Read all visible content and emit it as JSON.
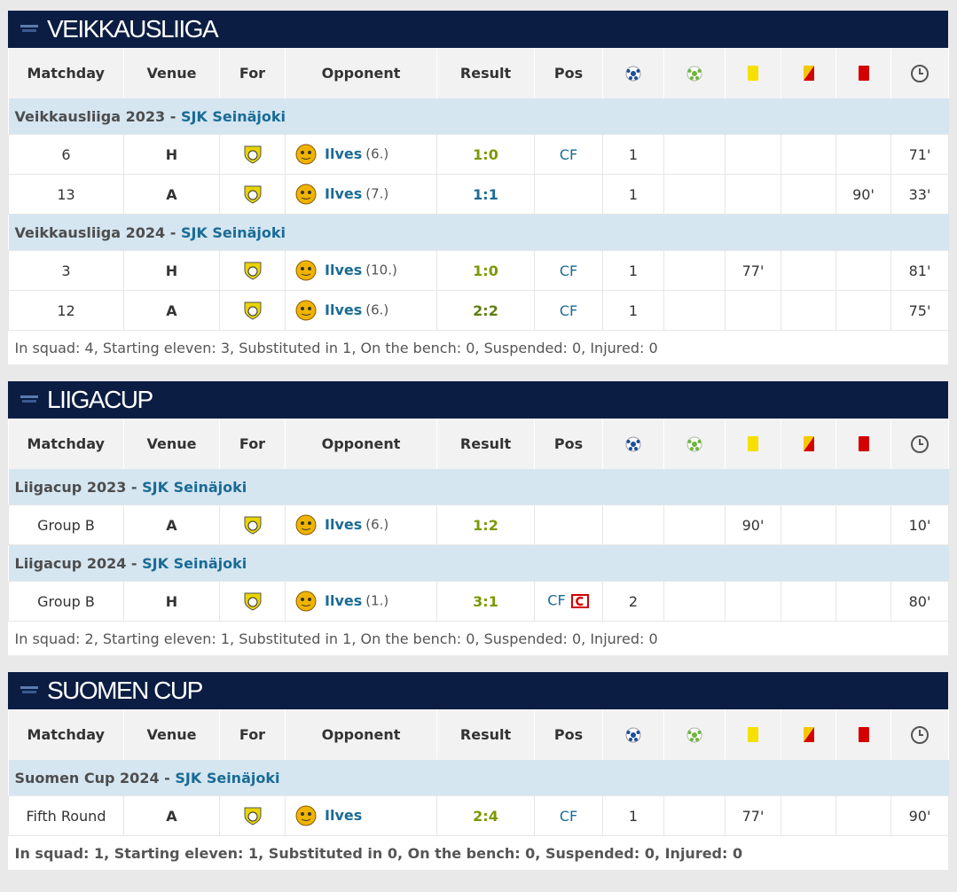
{
  "sections": [
    {
      "title": "VEIKKAUSLIIGA",
      "headers": [
        "Matchday",
        "Venue",
        "For",
        "Opponent",
        "Result",
        "Pos"
      ],
      "groups": [
        {
          "season": "Veikkausliiga 2023 -",
          "club": "SJK Seinäjoki",
          "rows": [
            {
              "matchday": "6",
              "venue": "H",
              "opponent": "Ilves",
              "rank": "(6.)",
              "result": "1:0",
              "result_color": "#7a9a01",
              "pos": "CF",
              "goals": "1",
              "minutes": "71'"
            },
            {
              "matchday": "13",
              "venue": "A",
              "opponent": "Ilves",
              "rank": "(7.)",
              "result": "1:1",
              "result_color": "#1a6b96",
              "goals": "1",
              "red": "90'",
              "minutes": "33'"
            }
          ]
        },
        {
          "season": "Veikkausliiga 2024 -",
          "club": "SJK Seinäjoki",
          "rows": [
            {
              "matchday": "3",
              "venue": "H",
              "opponent": "Ilves",
              "rank": "(10.)",
              "result": "1:0",
              "result_color": "#7a9a01",
              "pos": "CF",
              "goals": "1",
              "yellow": "77'",
              "minutes": "81'"
            },
            {
              "matchday": "12",
              "venue": "A",
              "opponent": "Ilves",
              "rank": "(6.)",
              "result": "2:2",
              "result_color": "#5f7f12",
              "pos": "CF",
              "goals": "1",
              "minutes": "75'"
            }
          ]
        }
      ],
      "summary": "In squad: 4, Starting eleven: 3, Substituted in 1, On the bench: 0, Suspended: 0, Injured: 0"
    },
    {
      "title": "LIIGACUP",
      "headers": [
        "Matchday",
        "Venue",
        "For",
        "Opponent",
        "Result",
        "Pos"
      ],
      "groups": [
        {
          "season": "Liigacup 2023 -",
          "club": "SJK Seinäjoki",
          "rows": [
            {
              "matchday": "Group B",
              "venue": "A",
              "opponent": "Ilves",
              "rank": "(6.)",
              "result": "1:2",
              "result_color": "#7a9a01",
              "yellow": "90'",
              "minutes": "10'"
            }
          ]
        },
        {
          "season": "Liigacup 2024 -",
          "club": "SJK Seinäjoki",
          "rows": [
            {
              "matchday": "Group B",
              "venue": "H",
              "opponent": "Ilves",
              "rank": "(1.)",
              "result": "3:1",
              "result_color": "#7a9a01",
              "pos": "CF",
              "captain": true,
              "goals": "2",
              "minutes": "80'"
            }
          ]
        }
      ],
      "summary": "In squad: 2, Starting eleven: 1, Substituted in 1, On the bench: 0, Suspended: 0, Injured: 0"
    },
    {
      "title": "SUOMEN CUP",
      "headers": [
        "Matchday",
        "Venue",
        "For",
        "Opponent",
        "Result",
        "Pos"
      ],
      "groups": [
        {
          "season": "Suomen Cup 2024 -",
          "club": "SJK Seinäjoki",
          "rows": [
            {
              "matchday": "Fifth Round",
              "venue": "A",
              "opponent": "Ilves",
              "result": "2:4",
              "result_color": "#7a9a01",
              "pos": "CF",
              "goals": "1",
              "yellow": "77'",
              "minutes": "90'"
            }
          ]
        }
      ],
      "summary": "In squad: 1, Starting eleven: 1, Substituted in 0, On the bench: 0, Suspended: 0, Injured: 0",
      "summary_bold": true
    }
  ]
}
